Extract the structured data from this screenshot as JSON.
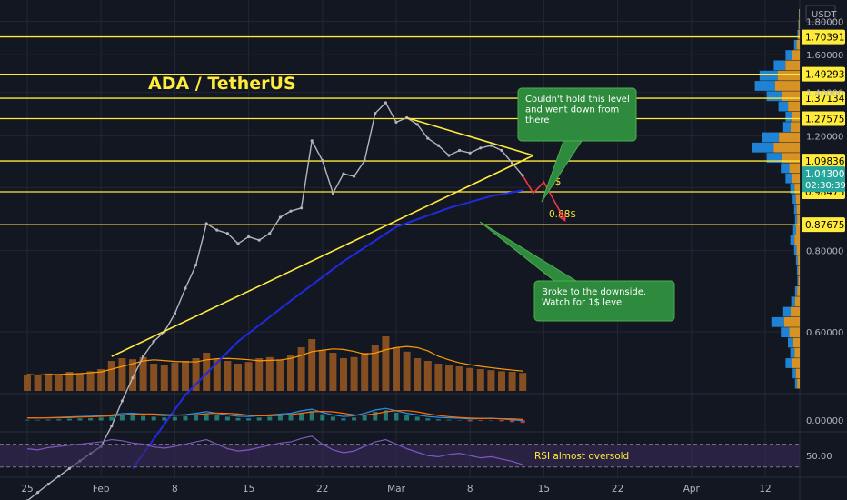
{
  "chart_data": {
    "type": "line",
    "title": "ADA / TetherUS",
    "currency_label": "USDT",
    "scale": "log",
    "y_range": [
      0.49,
      1.88
    ],
    "price_ticks": [
      {
        "value": 1.8,
        "label": "1.80000"
      },
      {
        "value": 1.6,
        "label": "1.60000"
      },
      {
        "value": 1.4,
        "label": "1.40000"
      },
      {
        "value": 1.2,
        "label": "1.20000"
      },
      {
        "value": 1.0,
        "label": "1.00000"
      },
      {
        "value": 0.8,
        "label": "0.80000"
      },
      {
        "value": 0.6,
        "label": "0.60000"
      }
    ],
    "horizontal_levels": [
      {
        "value": 1.70391,
        "label": "1.70391"
      },
      {
        "value": 1.49293,
        "label": "1.49293"
      },
      {
        "value": 1.37134,
        "label": "1.37134"
      },
      {
        "value": 1.27575,
        "label": "1.27575"
      },
      {
        "value": 1.09836,
        "label": "1.09836"
      },
      {
        "value": 0.98475,
        "label": "0.98475"
      },
      {
        "value": 0.87675,
        "label": "0.87675"
      }
    ],
    "level_notes": [
      {
        "level": 0.98475,
        "text": "1$"
      },
      {
        "level": 0.87675,
        "text": "0.88$"
      }
    ],
    "current_price": {
      "value": 1.043,
      "label": "1.04300",
      "countdown": "02:30:39"
    },
    "x_ticks": [
      {
        "day": 0,
        "label": "25"
      },
      {
        "day": 7,
        "label": "Feb"
      },
      {
        "day": 14,
        "label": "8"
      },
      {
        "day": 21,
        "label": "15"
      },
      {
        "day": 28,
        "label": "22"
      },
      {
        "day": 35,
        "label": "Mar"
      },
      {
        "day": 42,
        "label": "8"
      },
      {
        "day": 49,
        "label": "15"
      },
      {
        "day": 56,
        "label": "22"
      },
      {
        "day": 63,
        "label": "Apr"
      },
      {
        "day": 70,
        "label": "12"
      }
    ],
    "price_path": [
      {
        "day": 0,
        "price": 0.33
      },
      {
        "day": 1,
        "price": 0.34
      },
      {
        "day": 2,
        "price": 0.35
      },
      {
        "day": 3,
        "price": 0.36
      },
      {
        "day": 4,
        "price": 0.37
      },
      {
        "day": 5,
        "price": 0.38
      },
      {
        "day": 6,
        "price": 0.39
      },
      {
        "day": 7,
        "price": 0.4
      },
      {
        "day": 8,
        "price": 0.43
      },
      {
        "day": 9,
        "price": 0.47
      },
      {
        "day": 10,
        "price": 0.51
      },
      {
        "day": 11,
        "price": 0.55
      },
      {
        "day": 12,
        "price": 0.58
      },
      {
        "day": 13,
        "price": 0.6
      },
      {
        "day": 14,
        "price": 0.64
      },
      {
        "day": 15,
        "price": 0.7
      },
      {
        "day": 16,
        "price": 0.76
      },
      {
        "day": 17,
        "price": 0.88
      },
      {
        "day": 18,
        "price": 0.86
      },
      {
        "day": 19,
        "price": 0.85
      },
      {
        "day": 20,
        "price": 0.82
      },
      {
        "day": 21,
        "price": 0.84
      },
      {
        "day": 22,
        "price": 0.83
      },
      {
        "day": 23,
        "price": 0.85
      },
      {
        "day": 24,
        "price": 0.9
      },
      {
        "day": 25,
        "price": 0.92
      },
      {
        "day": 26,
        "price": 0.93
      },
      {
        "day": 27,
        "price": 1.18
      },
      {
        "day": 28,
        "price": 1.1
      },
      {
        "day": 29,
        "price": 0.98
      },
      {
        "day": 30,
        "price": 1.05
      },
      {
        "day": 31,
        "price": 1.04
      },
      {
        "day": 32,
        "price": 1.1
      },
      {
        "day": 33,
        "price": 1.3
      },
      {
        "day": 34,
        "price": 1.35
      },
      {
        "day": 35,
        "price": 1.26
      },
      {
        "day": 36,
        "price": 1.28
      },
      {
        "day": 37,
        "price": 1.25
      },
      {
        "day": 38,
        "price": 1.19
      },
      {
        "day": 39,
        "price": 1.16
      },
      {
        "day": 40,
        "price": 1.12
      },
      {
        "day": 41,
        "price": 1.14
      },
      {
        "day": 42,
        "price": 1.13
      },
      {
        "day": 43,
        "price": 1.15
      },
      {
        "day": 44,
        "price": 1.16
      },
      {
        "day": 45,
        "price": 1.14
      },
      {
        "day": 46,
        "price": 1.09
      },
      {
        "day": 47,
        "price": 1.043
      }
    ],
    "trendlines": [
      {
        "name": "rising-support",
        "from": {
          "day": 8,
          "price": 0.55
        },
        "to": {
          "day": 48,
          "price": 1.12
        }
      },
      {
        "name": "falling-resistance",
        "from": {
          "day": 36,
          "price": 1.28
        },
        "to": {
          "day": 48,
          "price": 1.12
        }
      }
    ],
    "moving_average": [
      {
        "day": 10,
        "price": 0.37
      },
      {
        "day": 15,
        "price": 0.48
      },
      {
        "day": 20,
        "price": 0.58
      },
      {
        "day": 25,
        "price": 0.67
      },
      {
        "day": 30,
        "price": 0.77
      },
      {
        "day": 35,
        "price": 0.87
      },
      {
        "day": 40,
        "price": 0.93
      },
      {
        "day": 44,
        "price": 0.97
      },
      {
        "day": 47,
        "price": 0.99
      }
    ],
    "projection_arrows": [
      [
        {
          "day": 47,
          "price": 1.043
        },
        {
          "day": 48,
          "price": 0.98
        },
        {
          "day": 49,
          "price": 1.02
        },
        {
          "day": 51,
          "price": 0.89
        }
      ]
    ],
    "annotations": [
      {
        "name": "resistance-note",
        "text": [
          "Couldn't hold this level",
          "and went down from",
          "there"
        ]
      },
      {
        "name": "breakdown-note",
        "text": [
          "Broke to the downside.",
          "Watch for 1$ level"
        ]
      }
    ],
    "volume_profile": [
      0.02,
      0.03,
      0.05,
      0.12,
      0.3,
      0.55,
      0.85,
      0.95,
      0.7,
      0.45,
      0.3,
      0.35,
      0.8,
      1.0,
      0.7,
      0.4,
      0.3,
      0.2,
      0.15,
      0.12,
      0.1,
      0.14,
      0.2,
      0.12,
      0.08,
      0.06,
      0.05,
      0.1,
      0.18,
      0.35,
      0.6,
      0.4,
      0.25,
      0.2,
      0.3,
      0.15,
      0.1
    ],
    "volume": [
      0.3,
      0.28,
      0.32,
      0.3,
      0.35,
      0.33,
      0.36,
      0.4,
      0.55,
      0.6,
      0.58,
      0.62,
      0.5,
      0.48,
      0.52,
      0.55,
      0.6,
      0.7,
      0.58,
      0.55,
      0.5,
      0.53,
      0.6,
      0.62,
      0.58,
      0.65,
      0.8,
      0.95,
      0.75,
      0.7,
      0.6,
      0.62,
      0.7,
      0.85,
      1.0,
      0.8,
      0.72,
      0.6,
      0.55,
      0.5,
      0.48,
      0.45,
      0.42,
      0.4,
      0.38,
      0.36,
      0.35,
      0.33
    ],
    "macd": [
      0.02,
      0.01,
      0.03,
      0.05,
      0.08,
      0.1,
      0.12,
      0.15,
      0.2,
      0.28,
      0.3,
      0.25,
      0.2,
      0.15,
      0.18,
      0.22,
      0.3,
      0.4,
      0.3,
      0.2,
      0.12,
      0.1,
      0.15,
      0.2,
      0.25,
      0.3,
      0.45,
      0.55,
      0.35,
      0.2,
      0.1,
      0.15,
      0.3,
      0.5,
      0.6,
      0.45,
      0.3,
      0.2,
      0.1,
      0.05,
      0.02,
      0.0,
      -0.05,
      -0.02,
      0.0,
      -0.05,
      -0.1,
      -0.15
    ],
    "macd_axis": {
      "value": 0.0,
      "label": "0.00000"
    },
    "rsi": [
      62,
      60,
      64,
      66,
      68,
      70,
      72,
      74,
      78,
      76,
      72,
      70,
      65,
      63,
      66,
      70,
      74,
      78,
      70,
      62,
      58,
      60,
      64,
      68,
      72,
      74,
      80,
      84,
      70,
      60,
      55,
      58,
      66,
      74,
      78,
      70,
      62,
      56,
      50,
      48,
      52,
      54,
      50,
      46,
      48,
      44,
      40,
      34
    ],
    "rsi_axis": {
      "value": 50,
      "label": "50.00"
    },
    "rsi_note": "RSI almost oversold",
    "colors": {
      "background": "#131722",
      "grid": "#232733",
      "level": "#ffeb3b",
      "level_text": "#000000",
      "trendline": "#ffeb3b",
      "price": "#b2b5be",
      "ma": "#2029e6",
      "arrow": "#f23645",
      "note_fill": "#2e8b3e",
      "note_border": "#4caf50",
      "note_text": "#ffffff",
      "volume": "#e67e22",
      "volume_ma": "#ff9800",
      "profile_up": "#2196f3",
      "profile_down": "#f9a825",
      "macd": "#2196f3",
      "signal": "#ff6d00",
      "rsi": "#7e57c2",
      "rsi_band": "#3b2a5a",
      "axis_text": "#b2b5be",
      "current_price": "#26a69a"
    }
  }
}
